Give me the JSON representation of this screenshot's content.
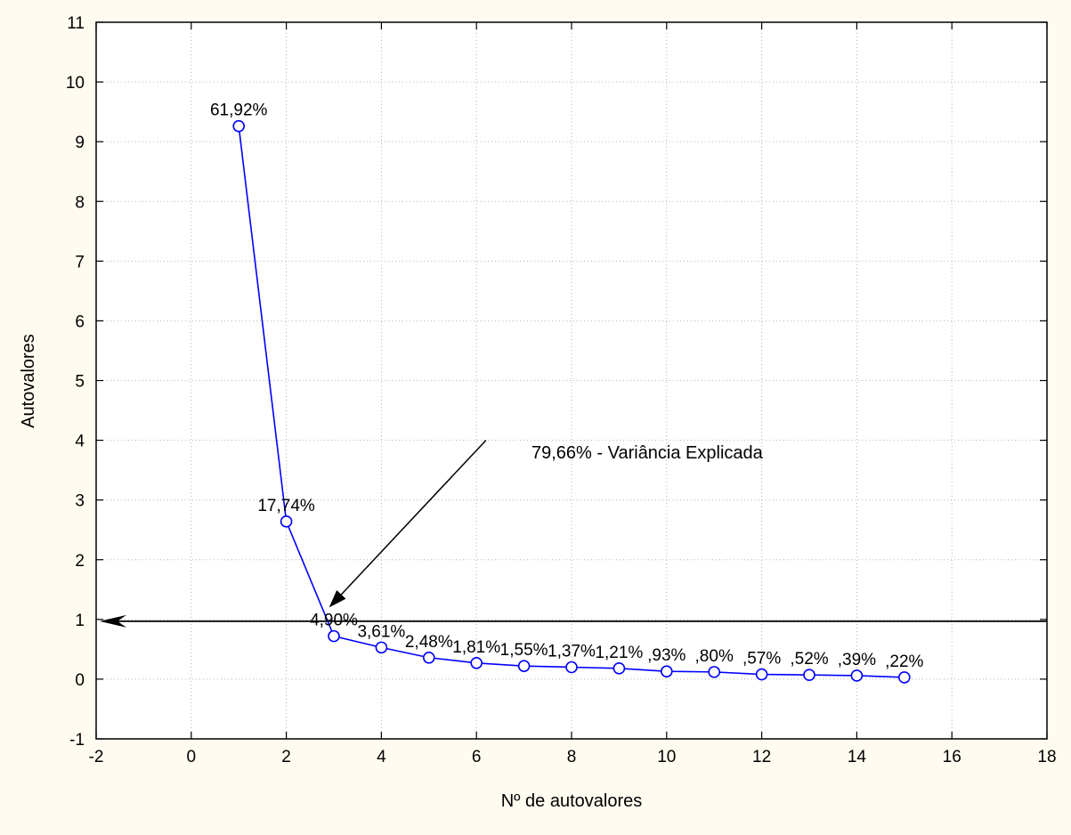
{
  "chart_data": {
    "type": "line",
    "xlabel": "Nº de autovalores",
    "ylabel": "Autovalores",
    "xlim": [
      -2,
      18
    ],
    "ylim": [
      -1,
      11
    ],
    "xticks": [
      -2,
      0,
      2,
      4,
      6,
      8,
      10,
      12,
      14,
      16,
      18
    ],
    "yticks": [
      -1,
      0,
      1,
      2,
      3,
      4,
      5,
      6,
      7,
      8,
      9,
      10,
      11
    ],
    "grid": true,
    "series": [
      {
        "color": "#0000ff",
        "x": [
          1,
          2,
          3,
          4,
          5,
          6,
          7,
          8,
          9,
          10,
          11,
          12,
          13,
          14,
          15
        ],
        "y": [
          9.26,
          2.64,
          0.72,
          0.53,
          0.36,
          0.27,
          0.22,
          0.2,
          0.18,
          0.13,
          0.12,
          0.08,
          0.07,
          0.06,
          0.03
        ],
        "labels": [
          "61,92%",
          "17,74%",
          "4,90%",
          "3,61%",
          "2,48%",
          "1,81%",
          "1,55%",
          "1,37%",
          "1,21%",
          ",93%",
          ",80%",
          ",57%",
          ",52%",
          ",39%",
          ",22%"
        ]
      }
    ],
    "reference_line": {
      "y": 0.97,
      "color": "#000000"
    },
    "annotation": {
      "text": "79,66% - Variância Explicada",
      "arrow_from": [
        6.2,
        4.0
      ],
      "arrow_to": [
        2.9,
        1.2
      ]
    }
  }
}
